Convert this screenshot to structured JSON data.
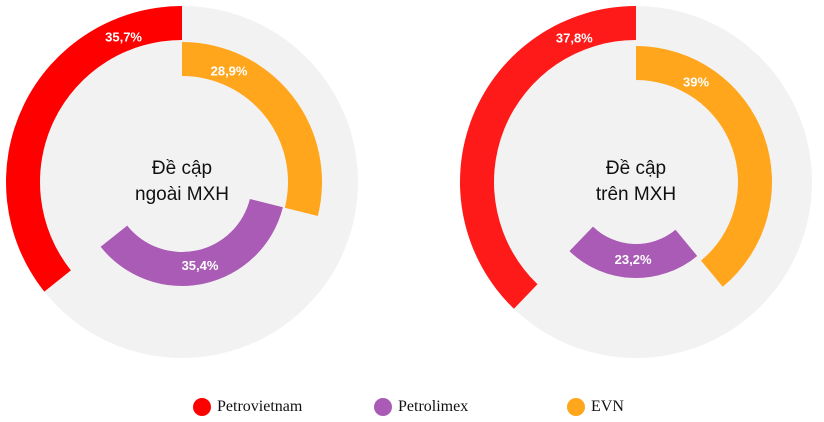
{
  "chart_data": [
    {
      "type": "donut",
      "center_label": [
        "Đề cập",
        "ngoài MXH"
      ],
      "slices": [
        {
          "name": "Petrovietnam",
          "value": 35.7,
          "label": "35,7%",
          "color": "#ff0000"
        },
        {
          "name": "Petrolimex",
          "value": 35.4,
          "label": "35,4%",
          "color": "#a95bb5"
        },
        {
          "name": "EVN",
          "value": 28.9,
          "label": "28,9%",
          "color": "#ffa61d"
        }
      ]
    },
    {
      "type": "donut",
      "center_label": [
        "Đề cập",
        "trên MXH"
      ],
      "slices": [
        {
          "name": "Petrovietnam",
          "value": 37.8,
          "label": "37,8%",
          "color": "#ff1a1a"
        },
        {
          "name": "Petrolimex",
          "value": 23.2,
          "label": "23,2%",
          "color": "#a95bb5"
        },
        {
          "name": "EVN",
          "value": 39.0,
          "label": "39%",
          "color": "#ffa61d"
        }
      ]
    }
  ],
  "legend": [
    {
      "name": "Petrovietnam",
      "color": "#ff0000"
    },
    {
      "name": "Petrolimex",
      "color": "#a95bb5"
    },
    {
      "name": "EVN",
      "color": "#ffa61d"
    }
  ]
}
